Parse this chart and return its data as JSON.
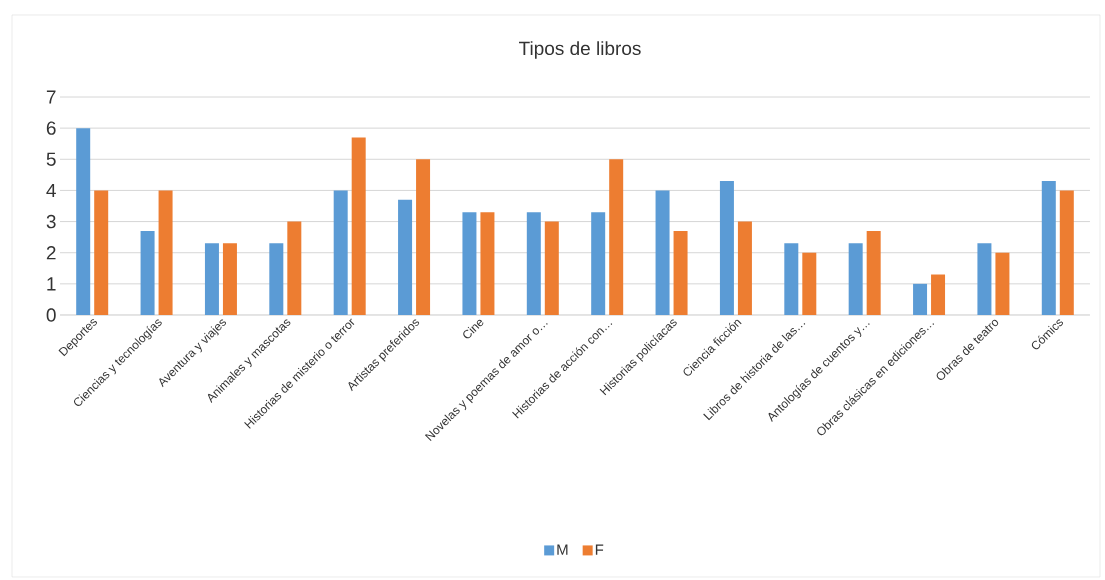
{
  "chart_data": {
    "type": "bar",
    "title": "Tipos de libros",
    "categories": [
      "Deportes",
      "Ciencias y tecnologías",
      "Aventura y viajes",
      "Animales y mascotas",
      "Historias de misterio o terror",
      "Artistas preferidos",
      "Cine",
      "Novelas y poemas de amor o…",
      "Historias de acción con…",
      "Historias policíacas",
      "Ciencia ficción",
      "Libros de historia de las…",
      "Antologías de cuentos y…",
      "Obras clásicas en ediciones…",
      "Obras de teatro",
      "Cómics"
    ],
    "series": [
      {
        "name": "M",
        "color": "#5b9bd5",
        "values": [
          6,
          2.7,
          2.3,
          2.3,
          4,
          3.7,
          3.3,
          3.3,
          3.3,
          4,
          4.3,
          2.3,
          2.3,
          1,
          2.3,
          4.3
        ]
      },
      {
        "name": "F",
        "color": "#ed7d31",
        "values": [
          4,
          4,
          2.3,
          3,
          5.7,
          5,
          3.3,
          3,
          5,
          2.7,
          3,
          2,
          2.7,
          1.3,
          2,
          4
        ]
      }
    ],
    "ylim": [
      0,
      7
    ],
    "yticks": [
      0,
      1,
      2,
      3,
      4,
      5,
      6,
      7
    ],
    "grid": "y",
    "legend": "bottom"
  }
}
